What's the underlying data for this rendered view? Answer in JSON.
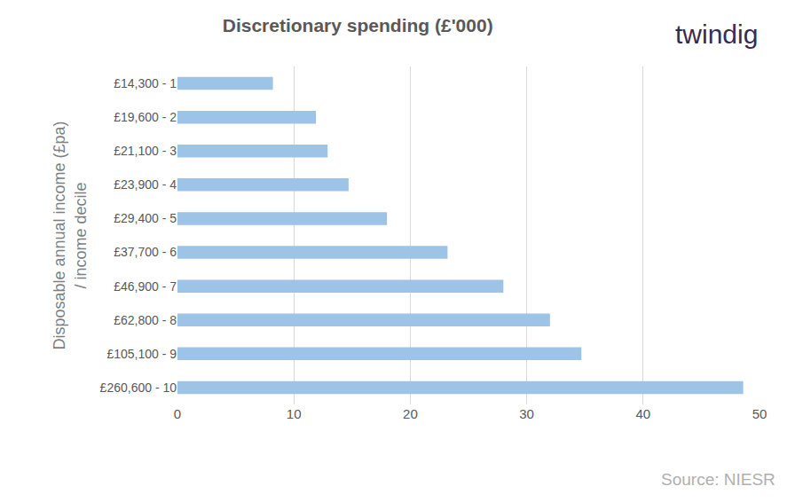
{
  "chart_data": {
    "type": "bar",
    "orientation": "horizontal",
    "title": "Discretionary spending (£'000)",
    "ylabel": "Disposable annual income (£pa)\n/ income decile",
    "categories": [
      "£14,300 - 1",
      "£19,600 - 2",
      "£21,100 - 3",
      "£23,900 - 4",
      "£29,400 - 5",
      "£37,700 - 6",
      "£46,900 - 7",
      "£62,800 - 8",
      "£105,100 - 9",
      "£260,600 - 10"
    ],
    "values": [
      8.2,
      11.9,
      12.9,
      14.7,
      18.0,
      23.2,
      28.0,
      32.0,
      34.7,
      48.6
    ],
    "color": "#9dc3e6",
    "xlim": [
      0,
      50
    ],
    "xticks": [
      0,
      10,
      20,
      30,
      40,
      50
    ],
    "grid": true,
    "annotations": [
      "twindig",
      "Source: NIESR"
    ]
  }
}
